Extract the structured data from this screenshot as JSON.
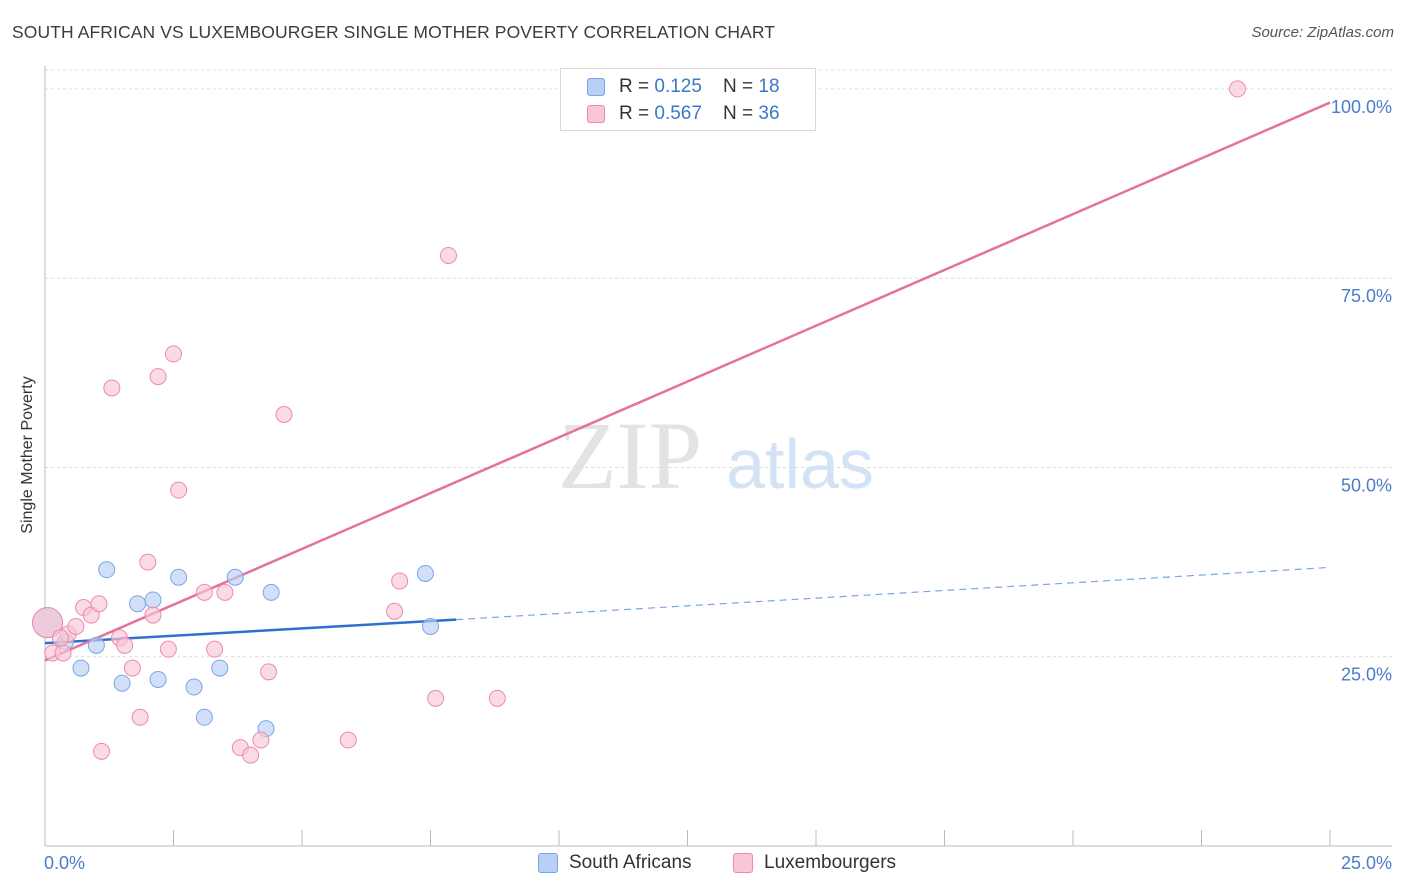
{
  "header": {
    "title": "SOUTH AFRICAN VS LUXEMBOURGER SINGLE MOTHER POVERTY CORRELATION CHART",
    "source": "Source: ZipAtlas.com"
  },
  "watermark": {
    "zip": "ZIP",
    "atlas": "atlas"
  },
  "legend": {
    "rows": [
      {
        "r_label": "R = ",
        "r_value": "0.125",
        "n_label": "N = ",
        "n_value": "18"
      },
      {
        "r_label": "R = ",
        "r_value": "0.567",
        "n_label": "N = ",
        "n_value": "36"
      }
    ]
  },
  "chart_data": {
    "type": "scatter",
    "title": "SOUTH AFRICAN VS LUXEMBOURGER SINGLE MOTHER POVERTY CORRELATION CHART",
    "xlabel": "",
    "ylabel": "Single Mother Poverty",
    "xlim": [
      0,
      25
    ],
    "ylim": [
      0,
      102.5
    ],
    "x_tick_labels": [
      "0.0%",
      "25.0%"
    ],
    "y_ticks": [
      {
        "value": 25,
        "label": "25.0%"
      },
      {
        "value": 50,
        "label": "50.0%"
      },
      {
        "value": 75,
        "label": "75.0%"
      },
      {
        "value": 100,
        "label": "100.0%"
      }
    ],
    "grid": true,
    "legend_position": "top-center",
    "series": [
      {
        "name": "South Africans",
        "color": "#7aa6e6",
        "fill": "#b8d0f5",
        "points": [
          [
            0.05,
            29.5
          ],
          [
            0.4,
            27.0
          ],
          [
            0.7,
            23.5
          ],
          [
            1.0,
            26.5
          ],
          [
            1.2,
            36.5
          ],
          [
            1.5,
            21.5
          ],
          [
            1.8,
            32.0
          ],
          [
            2.1,
            32.5
          ],
          [
            2.2,
            22.0
          ],
          [
            2.6,
            35.5
          ],
          [
            2.9,
            21.0
          ],
          [
            3.1,
            17.0
          ],
          [
            3.4,
            23.5
          ],
          [
            3.7,
            35.5
          ],
          [
            4.3,
            15.5
          ],
          [
            4.4,
            33.5
          ],
          [
            7.4,
            36.0
          ],
          [
            7.5,
            29.0
          ]
        ],
        "trend": {
          "x0": 0,
          "y0": 26.8,
          "x1": 8.0,
          "y1": 29.9,
          "dashed_to_x": 25,
          "dashed_to_y": 36.8
        }
      },
      {
        "name": "Luxembourgers",
        "color": "#ef8aab",
        "fill": "#f8c6d6",
        "points": [
          [
            0.05,
            29.5
          ],
          [
            0.15,
            25.5
          ],
          [
            0.35,
            25.5
          ],
          [
            0.45,
            28.0
          ],
          [
            0.6,
            29.0
          ],
          [
            0.75,
            31.5
          ],
          [
            0.9,
            30.5
          ],
          [
            1.05,
            32.0
          ],
          [
            1.1,
            12.5
          ],
          [
            1.3,
            60.5
          ],
          [
            1.45,
            27.5
          ],
          [
            1.55,
            26.5
          ],
          [
            1.7,
            23.5
          ],
          [
            1.85,
            17.0
          ],
          [
            2.0,
            37.5
          ],
          [
            2.1,
            30.5
          ],
          [
            2.2,
            62.0
          ],
          [
            2.4,
            26.0
          ],
          [
            2.5,
            65.0
          ],
          [
            2.6,
            47.0
          ],
          [
            3.1,
            33.5
          ],
          [
            3.3,
            26.0
          ],
          [
            3.5,
            33.5
          ],
          [
            3.8,
            13.0
          ],
          [
            4.0,
            12.0
          ],
          [
            4.2,
            14.0
          ],
          [
            4.35,
            23.0
          ],
          [
            4.65,
            57.0
          ],
          [
            5.9,
            14.0
          ],
          [
            6.8,
            31.0
          ],
          [
            6.9,
            35.0
          ],
          [
            7.6,
            19.5
          ],
          [
            7.85,
            78.0
          ],
          [
            8.8,
            19.5
          ],
          [
            23.2,
            100.0
          ],
          [
            0.3,
            27.5
          ]
        ],
        "trend": {
          "x0": 0,
          "y0": 24.5,
          "x1": 25,
          "y1": 98.2
        }
      }
    ]
  },
  "bottom_legend": {
    "items": [
      {
        "label": "South Africans"
      },
      {
        "label": "Luxembourgers"
      }
    ]
  }
}
